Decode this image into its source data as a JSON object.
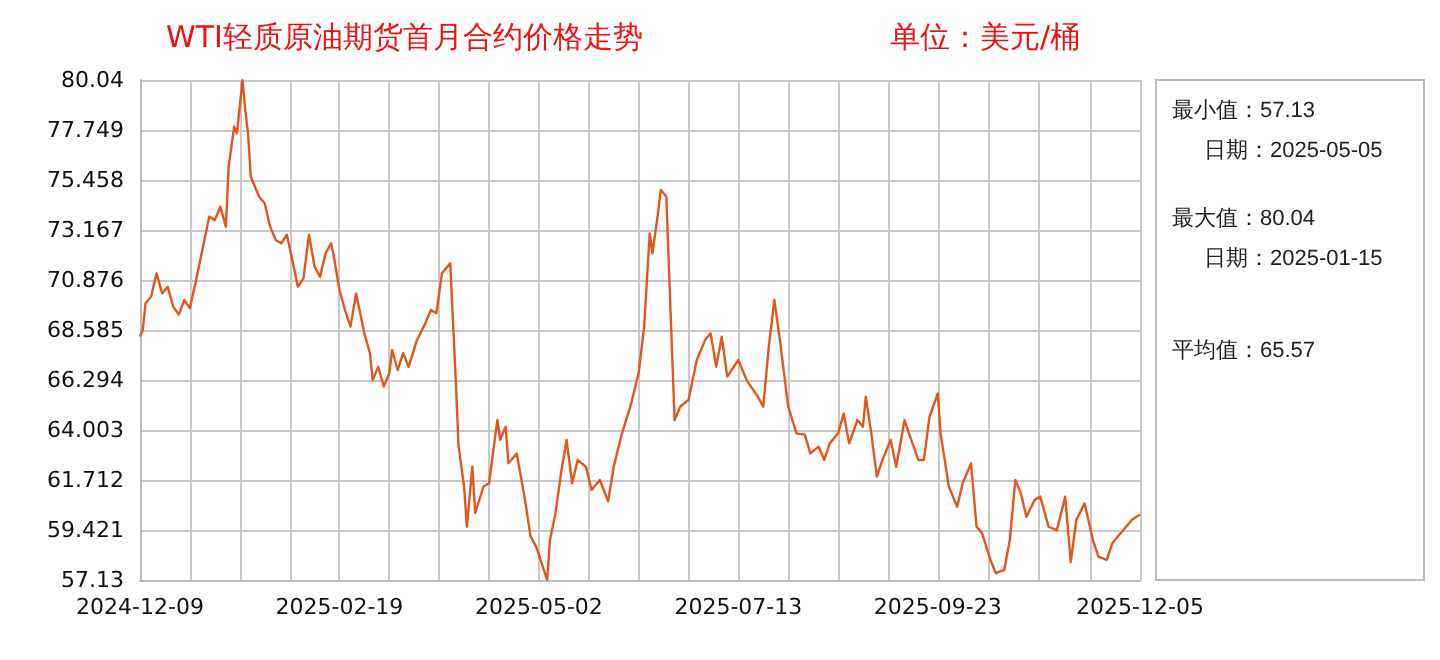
{
  "chart_data": {
    "type": "line",
    "title": "WTI轻质原油期货首月合约价格走势",
    "subtitle": "单位：美元/桶",
    "annotations": [
      "最小值：57.13",
      "日期：2025-05-05",
      "最大值：80.04",
      "日期：2025-01-15",
      "平均值：65.57"
    ],
    "xlim": [
      "2024-12-09",
      "2025-12-05"
    ],
    "xticks": [
      {
        "value": "2024-12-09",
        "label": "2024-12-09"
      },
      {
        "value": "2024-12-27",
        "label": null
      },
      {
        "value": "2025-01-14",
        "label": null
      },
      {
        "value": "2025-02-01",
        "label": null
      },
      {
        "value": "2025-02-19",
        "label": "2025-02-19"
      },
      {
        "value": "2025-03-09",
        "label": null
      },
      {
        "value": "2025-03-27",
        "label": null
      },
      {
        "value": "2025-04-14",
        "label": null
      },
      {
        "value": "2025-05-02",
        "label": "2025-05-02"
      },
      {
        "value": "2025-05-20",
        "label": null
      },
      {
        "value": "2025-06-07",
        "label": null
      },
      {
        "value": "2025-06-25",
        "label": null
      },
      {
        "value": "2025-07-13",
        "label": "2025-07-13"
      },
      {
        "value": "2025-07-31",
        "label": null
      },
      {
        "value": "2025-08-18",
        "label": null
      },
      {
        "value": "2025-09-05",
        "label": null
      },
      {
        "value": "2025-09-23",
        "label": "2025-09-23"
      },
      {
        "value": "2025-10-11",
        "label": null
      },
      {
        "value": "2025-10-29",
        "label": null
      },
      {
        "value": "2025-11-17",
        "label": null
      },
      {
        "value": "2025-12-05",
        "label": "2025-12-05"
      }
    ],
    "ylim": [
      57.13,
      80.04
    ],
    "yticks": [
      57.13,
      59.421,
      61.712,
      64.003,
      66.294,
      68.585,
      70.876,
      73.167,
      75.458,
      77.749,
      80.04
    ],
    "grid": true,
    "marker": "none",
    "line_style": "solid",
    "series": [
      {
        "color": "#e2571e",
        "x": [
          "2024-12-09",
          "2024-12-10",
          "2024-12-11",
          "2024-12-13",
          "2024-12-15",
          "2024-12-17",
          "2024-12-19",
          "2024-12-21",
          "2024-12-23",
          "2024-12-25",
          "2024-12-27",
          "2024-12-29",
          "2024-12-31",
          "2025-01-02",
          "2025-01-03",
          "2025-01-05",
          "2025-01-07",
          "2025-01-09",
          "2025-01-10",
          "2025-01-12",
          "2025-01-13",
          "2025-01-15",
          "2025-01-16",
          "2025-01-17",
          "2025-01-18",
          "2025-01-21",
          "2025-01-23",
          "2025-01-25",
          "2025-01-27",
          "2025-01-29",
          "2025-01-31",
          "2025-02-02",
          "2025-02-04",
          "2025-02-06",
          "2025-02-08",
          "2025-02-10",
          "2025-02-12",
          "2025-02-14",
          "2025-02-16",
          "2025-02-17",
          "2025-02-19",
          "2025-02-21",
          "2025-02-23",
          "2025-02-25",
          "2025-02-26",
          "2025-02-28",
          "2025-03-02",
          "2025-03-03",
          "2025-03-05",
          "2025-03-07",
          "2025-03-09",
          "2025-03-10",
          "2025-03-12",
          "2025-03-14",
          "2025-03-16",
          "2025-03-19",
          "2025-03-22",
          "2025-03-24",
          "2025-03-26",
          "2025-03-28",
          "2025-03-31",
          "2025-04-02",
          "2025-04-03",
          "2025-04-05",
          "2025-04-06",
          "2025-04-08",
          "2025-04-09",
          "2025-04-12",
          "2025-04-14",
          "2025-04-17",
          "2025-04-18",
          "2025-04-20",
          "2025-04-21",
          "2025-04-24",
          "2025-04-27",
          "2025-04-29",
          "2025-05-01",
          "2025-05-05",
          "2025-05-06",
          "2025-05-08",
          "2025-05-10",
          "2025-05-12",
          "2025-05-14",
          "2025-05-16",
          "2025-05-19",
          "2025-05-21",
          "2025-05-24",
          "2025-05-27",
          "2025-05-29",
          "2025-06-01",
          "2025-06-04",
          "2025-06-07",
          "2025-06-09",
          "2025-06-11",
          "2025-06-12",
          "2025-06-14",
          "2025-06-15",
          "2025-06-17",
          "2025-06-19",
          "2025-06-20",
          "2025-06-22",
          "2025-06-25",
          "2025-06-28",
          "2025-07-01",
          "2025-07-03",
          "2025-07-05",
          "2025-07-07",
          "2025-07-09",
          "2025-07-13",
          "2025-07-16",
          "2025-07-20",
          "2025-07-22",
          "2025-07-24",
          "2025-07-26",
          "2025-07-28",
          "2025-07-31",
          "2025-08-03",
          "2025-08-06",
          "2025-08-08",
          "2025-08-11",
          "2025-08-13",
          "2025-08-15",
          "2025-08-18",
          "2025-08-20",
          "2025-08-22",
          "2025-08-25",
          "2025-08-27",
          "2025-08-28",
          "2025-08-30",
          "2025-09-01",
          "2025-09-03",
          "2025-09-06",
          "2025-09-08",
          "2025-09-11",
          "2025-09-13",
          "2025-09-16",
          "2025-09-18",
          "2025-09-20",
          "2025-09-23",
          "2025-09-24",
          "2025-09-27",
          "2025-09-30",
          "2025-10-02",
          "2025-10-05",
          "2025-10-07",
          "2025-10-09",
          "2025-10-12",
          "2025-10-14",
          "2025-10-17",
          "2025-10-19",
          "2025-10-21",
          "2025-10-23",
          "2025-10-25",
          "2025-10-28",
          "2025-10-30",
          "2025-11-02",
          "2025-11-05",
          "2025-11-08",
          "2025-11-10",
          "2025-11-12",
          "2025-11-15",
          "2025-11-18",
          "2025-11-20",
          "2025-11-23",
          "2025-11-25",
          "2025-11-27",
          "2025-11-30",
          "2025-12-02",
          "2025-12-05"
        ],
        "values": [
          68.28,
          68.59,
          69.81,
          70.11,
          71.18,
          70.26,
          70.57,
          69.65,
          69.29,
          69.96,
          69.59,
          70.72,
          71.94,
          73.17,
          73.78,
          73.62,
          74.24,
          73.32,
          76.07,
          77.9,
          77.6,
          80.04,
          78.67,
          77.6,
          75.61,
          74.69,
          74.39,
          73.32,
          72.71,
          72.56,
          72.95,
          71.79,
          70.57,
          70.94,
          72.95,
          71.49,
          71.03,
          72.1,
          72.56,
          71.94,
          70.42,
          69.5,
          68.74,
          70.26,
          69.65,
          68.43,
          67.52,
          66.29,
          66.9,
          66.0,
          66.6,
          67.67,
          66.75,
          67.52,
          66.9,
          68.13,
          68.89,
          69.5,
          69.35,
          71.18,
          71.64,
          66.29,
          63.24,
          61.41,
          59.57,
          62.32,
          60.2,
          61.41,
          61.56,
          64.46,
          63.55,
          64.15,
          62.48,
          62.93,
          60.8,
          59.12,
          58.66,
          57.13,
          58.96,
          60.19,
          62.02,
          63.55,
          61.56,
          62.63,
          62.32,
          61.26,
          61.71,
          60.74,
          62.32,
          63.85,
          65.07,
          66.6,
          68.74,
          73.01,
          72.1,
          73.93,
          75.0,
          74.7,
          67.82,
          64.46,
          65.07,
          65.38,
          67.21,
          68.13,
          68.43,
          66.9,
          68.28,
          66.45,
          67.21,
          66.29,
          65.53,
          65.07,
          67.82,
          69.96,
          68.13,
          65.07,
          63.85,
          63.79,
          62.93,
          63.24,
          62.63,
          63.39,
          63.85,
          64.76,
          63.39,
          64.46,
          64.15,
          65.53,
          63.85,
          61.87,
          62.63,
          63.55,
          62.32,
          64.46,
          63.7,
          62.63,
          62.63,
          64.61,
          65.68,
          63.85,
          61.41,
          60.49,
          61.56,
          62.48,
          59.57,
          59.27,
          58.05,
          57.44,
          57.59,
          58.96,
          61.71,
          61.1,
          60.03,
          60.8,
          60.95,
          59.57,
          59.42,
          60.95,
          57.95,
          59.88,
          60.64,
          58.96,
          58.2,
          58.05,
          58.81,
          59.12,
          59.57,
          59.88,
          60.13
        ]
      }
    ]
  }
}
